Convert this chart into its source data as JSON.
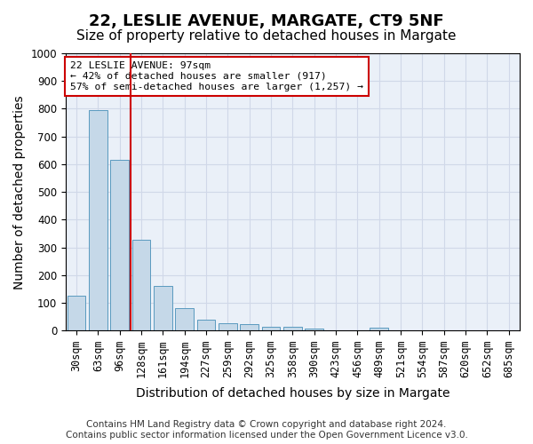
{
  "title1": "22, LESLIE AVENUE, MARGATE, CT9 5NF",
  "title2": "Size of property relative to detached houses in Margate",
  "xlabel": "Distribution of detached houses by size in Margate",
  "ylabel": "Number of detached properties",
  "categories": [
    "30sqm",
    "63sqm",
    "96sqm",
    "128sqm",
    "161sqm",
    "194sqm",
    "227sqm",
    "259sqm",
    "292sqm",
    "325sqm",
    "358sqm",
    "390sqm",
    "423sqm",
    "456sqm",
    "489sqm",
    "521sqm",
    "554sqm",
    "587sqm",
    "620sqm",
    "652sqm",
    "685sqm"
  ],
  "values": [
    125,
    795,
    615,
    328,
    160,
    82,
    40,
    27,
    23,
    15,
    15,
    7,
    0,
    0,
    10,
    0,
    0,
    0,
    0,
    0,
    0
  ],
  "bar_color": "#c5d8e8",
  "bar_edge_color": "#5a9abf",
  "vline_color": "#cc0000",
  "annotation_text": "22 LESLIE AVENUE: 97sqm\n← 42% of detached houses are smaller (917)\n57% of semi-detached houses are larger (1,257) →",
  "annotation_box_color": "#ffffff",
  "annotation_box_edge": "#cc0000",
  "ylim": [
    0,
    1000
  ],
  "yticks": [
    0,
    100,
    200,
    300,
    400,
    500,
    600,
    700,
    800,
    900,
    1000
  ],
  "grid_color": "#d0d8e8",
  "background_color": "#eaf0f8",
  "footer_text": "Contains HM Land Registry data © Crown copyright and database right 2024.\nContains public sector information licensed under the Open Government Licence v3.0.",
  "title1_fontsize": 13,
  "title2_fontsize": 11,
  "xlabel_fontsize": 10,
  "ylabel_fontsize": 10,
  "tick_fontsize": 8.5,
  "footer_fontsize": 7.5
}
